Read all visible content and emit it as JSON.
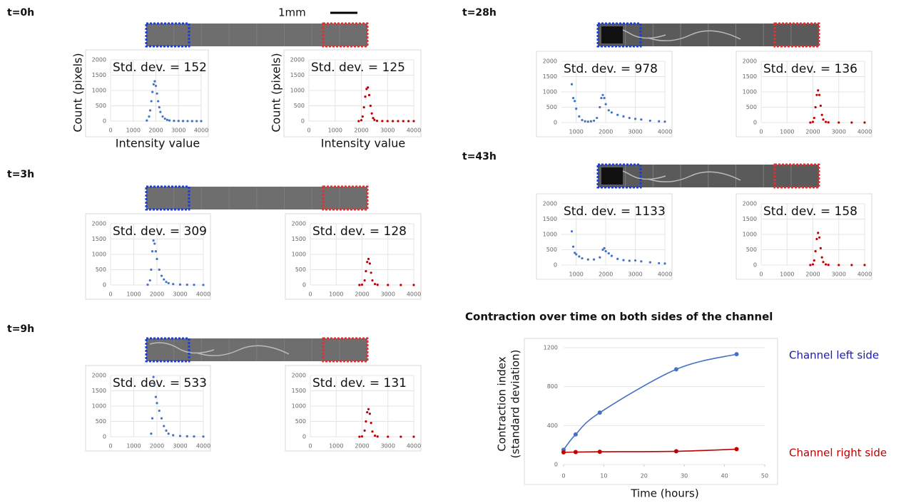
{
  "scale_bar": "1mm",
  "panel_labels": [
    "t=0h",
    "t=3h",
    "t=9h",
    "t=28h",
    "t=43h"
  ],
  "chart_data": [
    {
      "type": "scatter",
      "annotation": "Std. dev. = 152",
      "y_label": "Count (pixels)",
      "x_label": "Intensity value",
      "color": "#4472c4",
      "x": [
        1600,
        1700,
        1750,
        1800,
        1850,
        1900,
        1950,
        2000,
        2050,
        2100,
        2150,
        2200,
        2300,
        2400,
        2500,
        2600,
        2800,
        3000,
        3200,
        3400,
        3600,
        3800,
        4000
      ],
      "values": [
        20,
        150,
        350,
        650,
        950,
        1200,
        1300,
        1150,
        900,
        650,
        450,
        300,
        150,
        80,
        40,
        20,
        10,
        5,
        3,
        2,
        1,
        1,
        0
      ],
      "xlim": [
        0,
        4000
      ],
      "xticks": [
        0,
        1000,
        2000,
        3000,
        4000
      ],
      "ylim": [
        0,
        2000
      ],
      "yticks": [
        0,
        500,
        1000,
        1500,
        2000
      ],
      "grid": true
    },
    {
      "type": "scatter",
      "annotation": "Std. dev. = 125",
      "y_label": "Count (pixels)",
      "x_label": "Intensity value",
      "color": "#c00000",
      "x": [
        1900,
        2000,
        2050,
        2100,
        2150,
        2200,
        2250,
        2300,
        2350,
        2400,
        2450,
        2500,
        2600,
        2800,
        3000,
        3200,
        3400,
        3600,
        3800,
        4000
      ],
      "values": [
        0,
        30,
        150,
        450,
        800,
        1050,
        1100,
        850,
        500,
        250,
        100,
        40,
        10,
        3,
        1,
        0,
        0,
        0,
        0,
        0
      ],
      "xlim": [
        0,
        4000
      ],
      "xticks": [
        0,
        1000,
        2000,
        3000,
        4000
      ],
      "ylim": [
        0,
        2000
      ],
      "yticks": [
        0,
        500,
        1000,
        1500,
        2000
      ],
      "grid": true
    },
    {
      "type": "scatter",
      "annotation": "Std. dev. = 309",
      "color": "#4472c4",
      "x": [
        1600,
        1700,
        1750,
        1800,
        1850,
        1900,
        1950,
        2000,
        2100,
        2200,
        2300,
        2400,
        2500,
        2700,
        3000,
        3300,
        3600,
        4000
      ],
      "values": [
        10,
        150,
        500,
        1100,
        1450,
        1350,
        1100,
        850,
        500,
        300,
        180,
        100,
        60,
        30,
        15,
        8,
        5,
        2
      ],
      "xlim": [
        0,
        4000
      ],
      "xticks": [
        0,
        1000,
        2000,
        3000,
        4000
      ],
      "ylim": [
        0,
        2000
      ],
      "yticks": [
        0,
        500,
        1000,
        1500,
        2000
      ],
      "grid": true
    },
    {
      "type": "scatter",
      "annotation": "Std. dev. = 128",
      "color": "#c00000",
      "x": [
        1900,
        2000,
        2100,
        2150,
        2200,
        2250,
        2300,
        2350,
        2400,
        2500,
        2600,
        3000,
        3500,
        4000
      ],
      "values": [
        0,
        10,
        150,
        450,
        750,
        850,
        700,
        400,
        150,
        30,
        5,
        0,
        0,
        0
      ],
      "xlim": [
        0,
        4000
      ],
      "xticks": [
        0,
        1000,
        2000,
        3000,
        4000
      ],
      "ylim": [
        0,
        2000
      ],
      "yticks": [
        0,
        500,
        1000,
        1500,
        2000
      ],
      "grid": true
    },
    {
      "type": "scatter",
      "annotation": "Std. dev. = 533",
      "color": "#4472c4",
      "x": [
        1750,
        1800,
        1850,
        1900,
        1950,
        2000,
        2100,
        2200,
        2300,
        2400,
        2500,
        2700,
        3000,
        3300,
        3600,
        4000
      ],
      "values": [
        100,
        600,
        1950,
        1700,
        1300,
        1100,
        850,
        600,
        350,
        200,
        100,
        50,
        25,
        15,
        10,
        5
      ],
      "xlim": [
        0,
        4000
      ],
      "xticks": [
        0,
        1000,
        2000,
        3000,
        4000
      ],
      "ylim": [
        0,
        2000
      ],
      "yticks": [
        0,
        500,
        1000,
        1500,
        2000
      ],
      "grid": true
    },
    {
      "type": "scatter",
      "annotation": "Std. dev. = 131",
      "color": "#c00000",
      "x": [
        1900,
        2000,
        2100,
        2150,
        2200,
        2250,
        2300,
        2350,
        2400,
        2500,
        2600,
        3000,
        3500,
        4000
      ],
      "values": [
        0,
        10,
        200,
        500,
        800,
        900,
        750,
        450,
        170,
        35,
        5,
        0,
        0,
        0
      ],
      "xlim": [
        0,
        4000
      ],
      "xticks": [
        0,
        1000,
        2000,
        3000,
        4000
      ],
      "ylim": [
        0,
        2000
      ],
      "yticks": [
        0,
        500,
        1000,
        1500,
        2000
      ],
      "grid": true
    },
    {
      "type": "scatter",
      "annotation": "Std. dev. = 978",
      "color": "#4472c4",
      "x": [
        850,
        900,
        950,
        1000,
        1100,
        1200,
        1300,
        1400,
        1500,
        1600,
        1700,
        1800,
        1850,
        1900,
        1950,
        2000,
        2100,
        2200,
        2400,
        2600,
        2800,
        3000,
        3200,
        3500,
        3800,
        4000
      ],
      "values": [
        1250,
        800,
        700,
        450,
        200,
        80,
        40,
        30,
        40,
        60,
        150,
        500,
        800,
        900,
        800,
        600,
        400,
        330,
        250,
        200,
        150,
        120,
        100,
        60,
        40,
        30
      ],
      "xlim": [
        500,
        4000
      ],
      "xticks": [
        1000,
        2000,
        3000,
        4000
      ],
      "ylim": [
        0,
        2000
      ],
      "yticks": [
        0,
        500,
        1000,
        1500,
        2000
      ],
      "grid": true
    },
    {
      "type": "scatter",
      "annotation": "Std. dev. = 136",
      "color": "#c00000",
      "x": [
        1900,
        2000,
        2050,
        2100,
        2150,
        2200,
        2250,
        2300,
        2350,
        2400,
        2500,
        2600,
        3000,
        3500,
        4000
      ],
      "values": [
        0,
        20,
        150,
        500,
        900,
        1050,
        900,
        550,
        250,
        100,
        20,
        5,
        0,
        0,
        0
      ],
      "xlim": [
        0,
        4000
      ],
      "xticks": [
        0,
        1000,
        2000,
        3000,
        4000
      ],
      "ylim": [
        0,
        2000
      ],
      "yticks": [
        0,
        500,
        1000,
        1500,
        2000
      ],
      "grid": true
    },
    {
      "type": "scatter",
      "annotation": "Std. dev. = 1133",
      "color": "#4472c4",
      "x": [
        850,
        900,
        950,
        1000,
        1100,
        1200,
        1400,
        1600,
        1800,
        1900,
        1950,
        2000,
        2100,
        2200,
        2400,
        2600,
        2800,
        3000,
        3200,
        3500,
        3800,
        4000
      ],
      "values": [
        1100,
        600,
        400,
        350,
        280,
        220,
        180,
        180,
        250,
        500,
        550,
        450,
        380,
        300,
        200,
        160,
        140,
        150,
        120,
        90,
        60,
        50
      ],
      "xlim": [
        500,
        4000
      ],
      "xticks": [
        1000,
        2000,
        3000,
        4000
      ],
      "ylim": [
        0,
        2000
      ],
      "yticks": [
        0,
        500,
        1000,
        1500,
        2000
      ],
      "grid": true
    },
    {
      "type": "scatter",
      "annotation": "Std. dev. = 158",
      "color": "#c00000",
      "x": [
        1900,
        2000,
        2050,
        2100,
        2150,
        2200,
        2250,
        2300,
        2350,
        2400,
        2500,
        2600,
        3000,
        3500,
        4000
      ],
      "values": [
        0,
        20,
        150,
        450,
        850,
        1050,
        900,
        550,
        250,
        100,
        20,
        5,
        0,
        0,
        0
      ],
      "xlim": [
        0,
        4000
      ],
      "xticks": [
        0,
        1000,
        2000,
        3000,
        4000
      ],
      "ylim": [
        0,
        2000
      ],
      "yticks": [
        0,
        500,
        1000,
        1500,
        2000
      ],
      "grid": true
    },
    {
      "type": "line",
      "title": "Contraction over time on both sides of the channel",
      "x_label": "Time (hours)",
      "y_label": [
        "Contraction index",
        "(standard deviation)"
      ],
      "x": [
        0,
        3,
        9,
        28,
        43
      ],
      "series": [
        {
          "name": "Channel left side",
          "color": "#4472c4",
          "label_color": "#1c1c9c",
          "values": [
            152,
            309,
            533,
            978,
            1133
          ]
        },
        {
          "name": "Channel right side",
          "color": "#c00000",
          "label_color": "#c00000",
          "values": [
            125,
            128,
            131,
            136,
            158
          ]
        }
      ],
      "xlim": [
        0,
        50
      ],
      "xticks": [
        0,
        10,
        20,
        30,
        40,
        50
      ],
      "ylim": [
        0,
        1200
      ],
      "yticks": [
        0,
        400,
        800,
        1200
      ],
      "grid": true,
      "legend": "right"
    }
  ]
}
